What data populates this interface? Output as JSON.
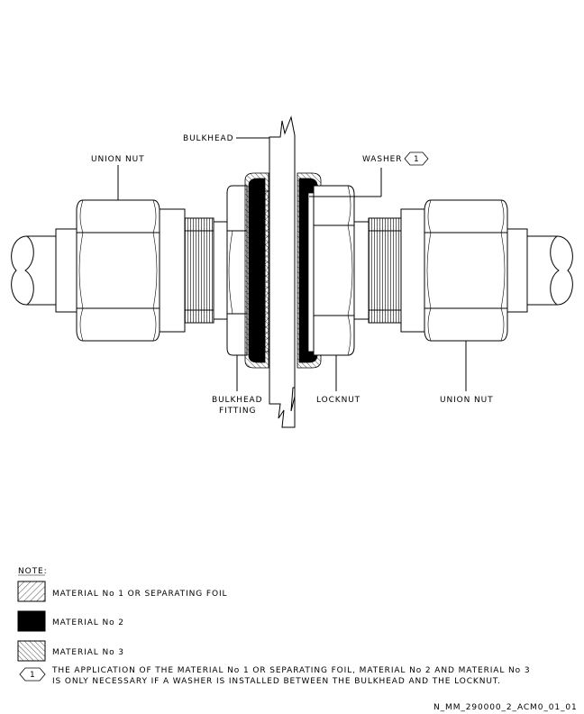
{
  "labels": {
    "bulkhead": "BULKHEAD",
    "union_nut_left": "UNION NUT",
    "washer": "WASHER",
    "washer_ref": "1",
    "bulkhead_fitting_line1": "BULKHEAD",
    "bulkhead_fitting_line2": "FITTING",
    "locknut": "LOCKNUT",
    "union_nut_right": "UNION NUT"
  },
  "notes": {
    "heading": "NOTE:",
    "material1": "MATERIAL No 1 OR SEPARATING FOIL",
    "material2": "MATERIAL No 2",
    "material3": "MATERIAL No 3",
    "ref_number": "1",
    "footnote_line1": "THE APPLICATION OF THE MATERIAL No 1 OR SEPARATING FOIL, MATERIAL No 2 AND MATERIAL No 3",
    "footnote_line2": "IS ONLY NECESSARY IF A WASHER IS INSTALLED BETWEEN THE BULKHEAD AND THE LOCKNUT."
  },
  "figure_id": "N_MM_290000_2_ACM0_01_01"
}
